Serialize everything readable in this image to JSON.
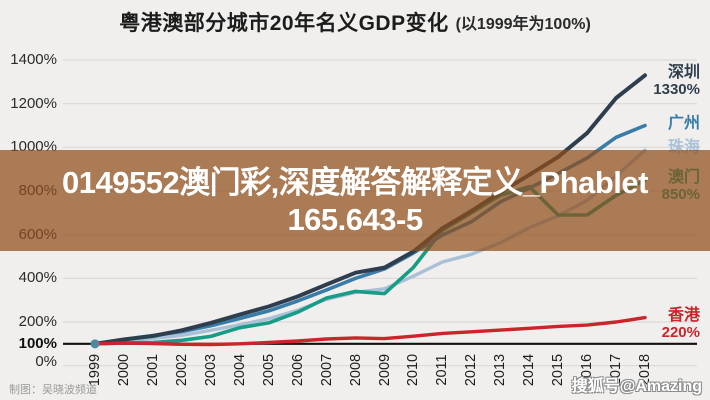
{
  "title": {
    "main": "粤港澳部分城市20年名义GDP变化",
    "subtitle": "(以1999年为100%)"
  },
  "overlay": {
    "line1": "0149552澳门彩,深度解答解释定义_Phablet",
    "line2": "165.643-5"
  },
  "footer": {
    "credit": "制图：吴晓波频道",
    "watermark": "搜狐号@Amazing"
  },
  "colors": {
    "background": "#f0efed",
    "gridline": "#dbdad8",
    "baseline": "#111111",
    "banner_overlay": "rgba(143,77,26,0.72)",
    "banner_text": "#ffffff",
    "start_dot": "#4a8b9e"
  },
  "chart_data": {
    "type": "line",
    "title": "粤港澳部分城市20年名义GDP变化",
    "subtitle": "(以1999年为100%)",
    "xlabel": "",
    "ylabel": "",
    "x": [
      "1999",
      "2000",
      "2001",
      "2002",
      "2003",
      "2004",
      "2005",
      "2006",
      "2007",
      "2008",
      "2009",
      "2010",
      "2011",
      "2012",
      "2013",
      "2014",
      "2015",
      "2016",
      "2017",
      "2018"
    ],
    "ylim": [
      0,
      1450
    ],
    "grid": true,
    "legend_position": "right-end-labels",
    "baseline_value": 100,
    "yticks": [
      {
        "value": 1400,
        "label": "1400%",
        "bold": false
      },
      {
        "value": 1200,
        "label": "1200%",
        "bold": false
      },
      {
        "value": 1000,
        "label": "1000%",
        "bold": false
      },
      {
        "value": 800,
        "label": "800%",
        "bold": false
      },
      {
        "value": 600,
        "label": "600%",
        "bold": false
      },
      {
        "value": 400,
        "label": "400%",
        "bold": false
      },
      {
        "value": 200,
        "label": "200%",
        "bold": false
      },
      {
        "value": 100,
        "label": "100%",
        "bold": true
      },
      {
        "value": 0,
        "label": "0%",
        "bold": false
      }
    ],
    "series": [
      {
        "name": "珠海",
        "end_label": "",
        "color": "#a9c0d7",
        "width": 3.4,
        "values": [
          100,
          113,
          125,
          139,
          162,
          187,
          215,
          254,
          304,
          336,
          352,
          410,
          475,
          510,
          563,
          632,
          686,
          757,
          869,
          987
        ]
      },
      {
        "name": "澳门",
        "end_label": "850%",
        "color": "#169c87",
        "width": 3.6,
        "values": [
          100,
          104,
          106,
          116,
          134,
          174,
          196,
          245,
          310,
          340,
          330,
          450,
          620,
          700,
          780,
          820,
          690,
          690,
          780,
          850
        ]
      },
      {
        "name": "广州",
        "end_label": "",
        "color": "#3a7ca8",
        "width": 3.6,
        "values": [
          100,
          121,
          138,
          156,
          183,
          216,
          251,
          296,
          347,
          400,
          443,
          516,
          598,
          659,
          750,
          813,
          880,
          951,
          1046,
          1100
        ]
      },
      {
        "name": "深圳",
        "end_label": "1330%",
        "color": "#2f3e4e",
        "width": 4,
        "values": [
          100,
          120,
          136,
          162,
          196,
          234,
          271,
          317,
          372,
          426,
          449,
          523,
          629,
          708,
          793,
          874,
          956,
          1065,
          1226,
          1330
        ]
      },
      {
        "name": "香港",
        "end_label": "220%",
        "color": "#c9252b",
        "width": 3.4,
        "values": [
          100,
          104,
          101,
          98,
          97,
          100,
          106,
          113,
          122,
          127,
          124,
          135,
          148,
          155,
          163,
          171,
          180,
          186,
          200,
          220
        ]
      }
    ]
  }
}
